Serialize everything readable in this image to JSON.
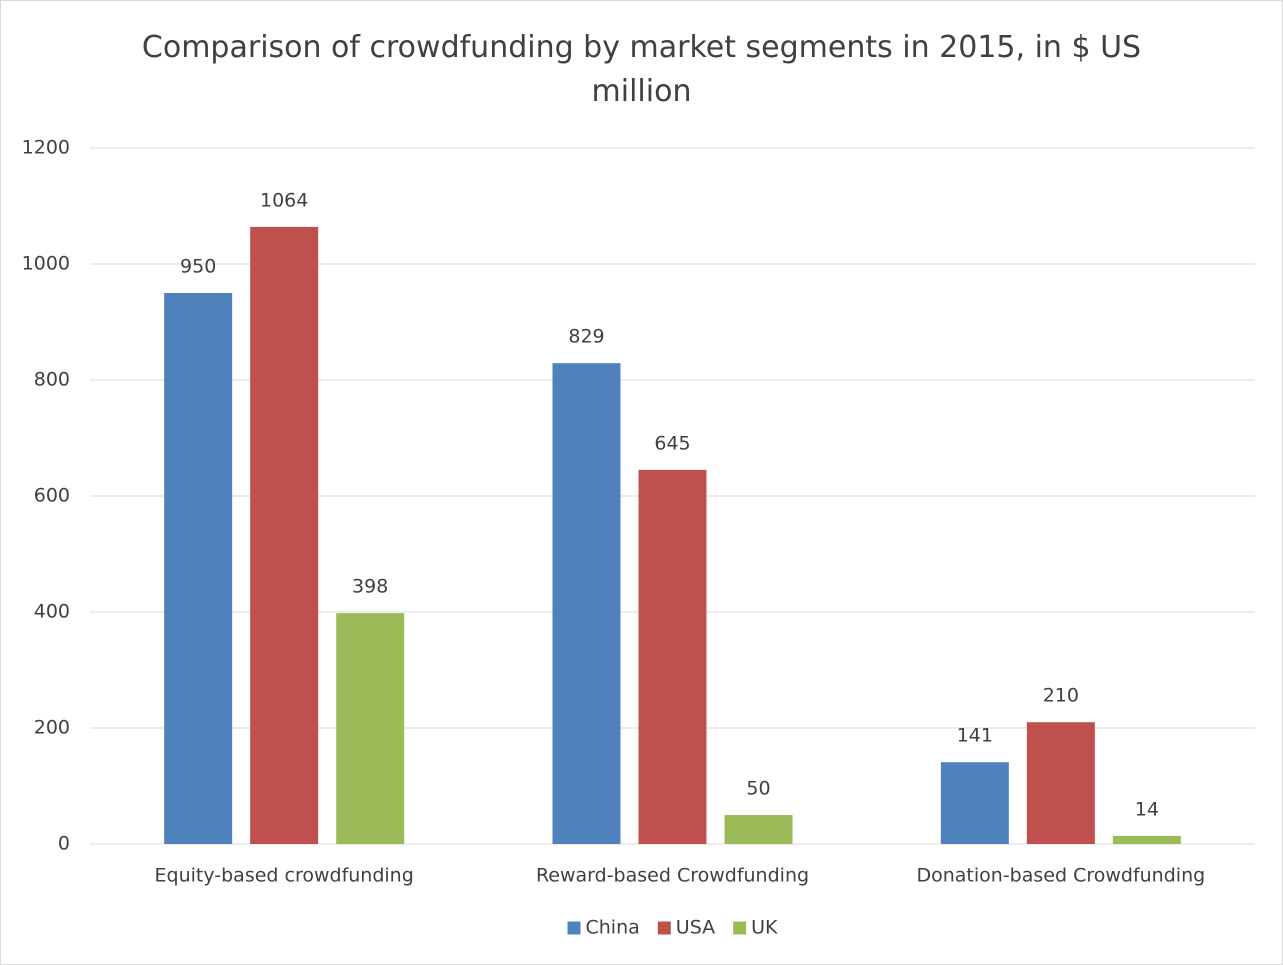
{
  "chart_data": {
    "type": "bar",
    "title": "Comparison of crowdfunding by market segments in 2015, in $ US million",
    "categories": [
      "Equity-based crowdfunding",
      "Reward-based Crowdfunding",
      "Donation-based Crowdfunding"
    ],
    "series": [
      {
        "name": "China",
        "color": "#4f81bd",
        "values": [
          950,
          829,
          141
        ]
      },
      {
        "name": "USA",
        "color": "#c0504d",
        "values": [
          1064,
          645,
          210
        ]
      },
      {
        "name": "UK",
        "color": "#9bbb59",
        "values": [
          398,
          50,
          14
        ]
      }
    ],
    "ylim": [
      0,
      1200
    ],
    "yticks": [
      0,
      200,
      400,
      600,
      800,
      1000,
      1200
    ],
    "grid": true,
    "legend": "bottom"
  }
}
